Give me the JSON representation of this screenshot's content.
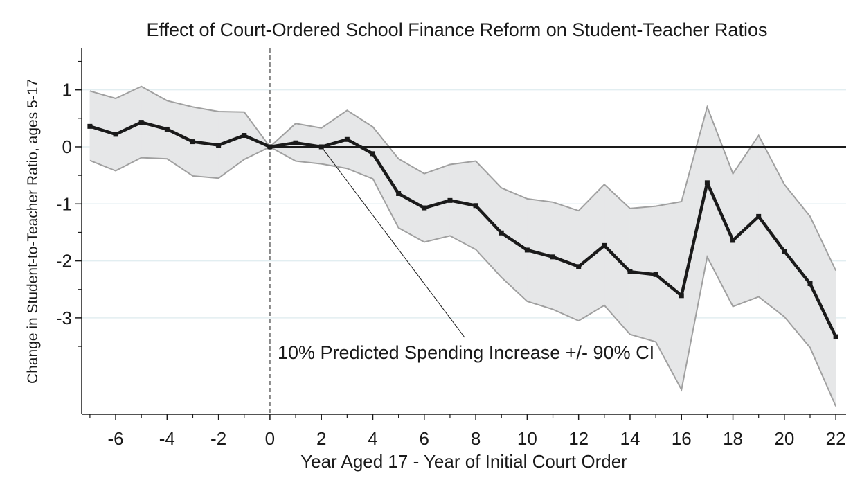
{
  "chart_data": {
    "type": "line",
    "title": "Effect of Court-Ordered School Finance Reform on Student-Teacher Ratios",
    "x_label": "Year Aged 17 - Year of Initial Court Order",
    "y_label": "Change in Student-to-Teacher Ratio, ages 5-17",
    "annotation": "10% Predicted Spending Increase +/- 90% CI",
    "x": [
      -7,
      -6,
      -5,
      -4,
      -3,
      -2,
      -1,
      0,
      1,
      2,
      3,
      4,
      5,
      6,
      7,
      8,
      9,
      10,
      11,
      12,
      13,
      14,
      15,
      16,
      17,
      18,
      19,
      20,
      21,
      22
    ],
    "values": [
      0.36,
      0.22,
      0.43,
      0.31,
      0.09,
      0.03,
      0.2,
      0,
      0.07,
      0.0,
      0.13,
      -0.12,
      -0.82,
      -1.07,
      -0.94,
      -1.03,
      -1.51,
      -1.81,
      -1.93,
      -2.1,
      -1.73,
      -2.19,
      -2.24,
      -2.61,
      -0.63,
      -1.64,
      -1.22,
      -1.83,
      -2.4,
      -3.33
    ],
    "ci_upper": [
      0.98,
      0.85,
      1.06,
      0.81,
      0.7,
      0.62,
      0.61,
      0,
      0.41,
      0.33,
      0.64,
      0.35,
      -0.21,
      -0.47,
      -0.31,
      -0.25,
      -0.72,
      -0.91,
      -0.97,
      -1.12,
      -0.66,
      -1.08,
      -1.04,
      -0.96,
      0.7,
      -0.47,
      0.2,
      -0.66,
      -1.22,
      -2.17
    ],
    "ci_lower": [
      -0.24,
      -0.42,
      -0.19,
      -0.21,
      -0.51,
      -0.55,
      -0.22,
      0,
      -0.25,
      -0.3,
      -0.38,
      -0.56,
      -1.42,
      -1.67,
      -1.56,
      -1.8,
      -2.29,
      -2.71,
      -2.85,
      -3.05,
      -2.78,
      -3.29,
      -3.42,
      -4.26,
      -1.93,
      -2.8,
      -2.63,
      -2.98,
      -3.52,
      -4.55
    ],
    "color": "#1a1a1a",
    "ci_color": "#e6e7e8",
    "ci_edge_color": "#a0a0a0",
    "xlim": [
      -7.32,
      22.4
    ],
    "ylim": [
      -4.69,
      1.725
    ],
    "xticks": [
      -6,
      -4,
      -2,
      0,
      2,
      4,
      6,
      8,
      10,
      12,
      14,
      16,
      18,
      20,
      22
    ],
    "xminorticks": [
      -7,
      -5,
      -3,
      -1,
      1,
      3,
      5,
      7,
      9,
      11,
      13,
      15,
      17,
      19,
      21
    ],
    "yticks": [
      -3,
      -2,
      -1,
      0,
      1
    ],
    "yminorticks": [
      -3.5,
      -2.5,
      -1.5,
      -0.5,
      0.5,
      1.5
    ],
    "grid": true,
    "hline": 0,
    "vline": 0
  }
}
